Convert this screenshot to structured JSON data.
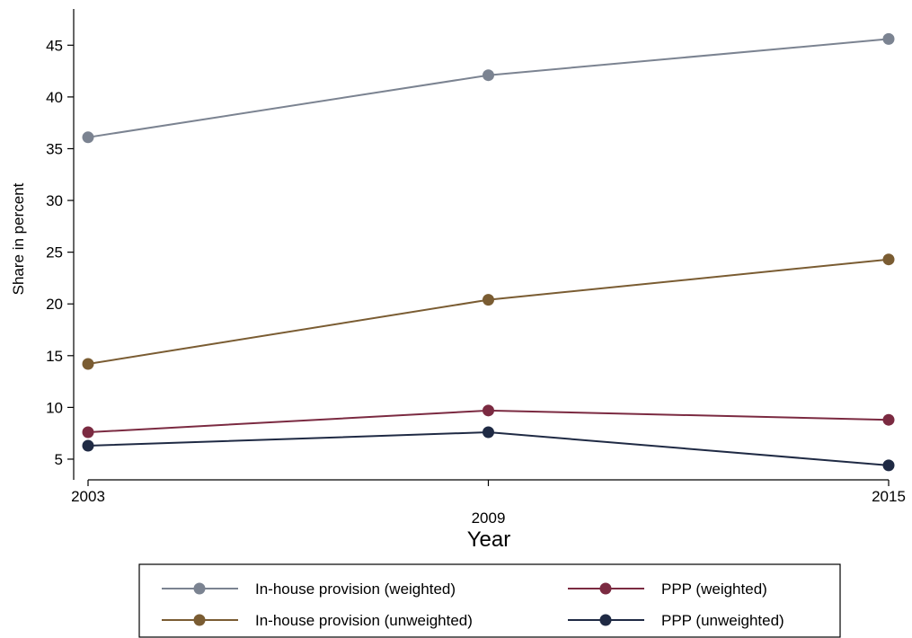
{
  "chart_data": {
    "type": "line",
    "title": "",
    "xlabel": "Year",
    "ylabel": "Share in percent",
    "x": [
      2003,
      2009,
      2015
    ],
    "x_tick_labels": [
      "2003",
      "2009",
      "2015"
    ],
    "y_ticks": [
      5,
      10,
      15,
      20,
      25,
      30,
      35,
      40,
      45
    ],
    "ylim": [
      3,
      48.5
    ],
    "grid": false,
    "legend_position": "bottom",
    "series": [
      {
        "name": "In-house provision (weighted)",
        "color": "#7b8391",
        "values": [
          36.1,
          42.1,
          45.6
        ]
      },
      {
        "name": "In-house provision (unweighted)",
        "color": "#7a5c32",
        "values": [
          14.2,
          20.4,
          24.3
        ]
      },
      {
        "name": "PPP (weighted)",
        "color": "#7b2a41",
        "values": [
          7.6,
          9.7,
          8.8
        ]
      },
      {
        "name": "PPP (unweighted)",
        "color": "#1f2a44",
        "values": [
          6.3,
          7.6,
          4.4
        ]
      }
    ],
    "legend_order": [
      0,
      2,
      1,
      3
    ]
  }
}
